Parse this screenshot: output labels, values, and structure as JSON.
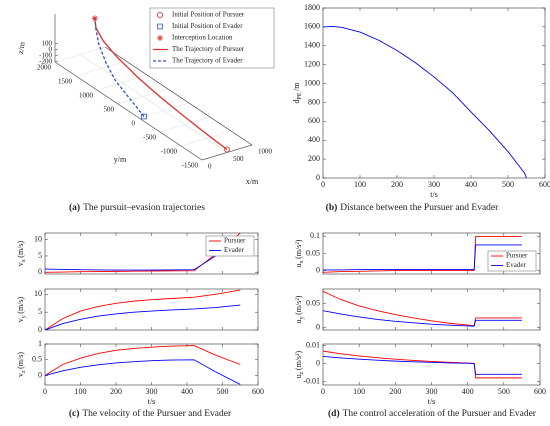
{
  "chart_data": [
    {
      "type": "line3d",
      "xlabel": "x/m",
      "ylabel": "y/m",
      "zlabel": "z/m",
      "xlim": [
        0,
        1000
      ],
      "ylim": [
        -1500,
        2000
      ],
      "zlim": [
        -200,
        600
      ],
      "xticks": [
        0,
        500,
        1000
      ],
      "yticks": [
        2000,
        1500,
        1000,
        500,
        0,
        -500,
        -1000,
        -1500
      ],
      "zticks": [
        100,
        0,
        -100,
        -200
      ],
      "markers": [
        {
          "name": "Initial Position of Pursuer",
          "marker": "circle",
          "color": "#e03030",
          "x": 500,
          "y": -1500,
          "z": -150
        },
        {
          "name": "Initial Position of Evader",
          "marker": "square",
          "color": "#3050c0",
          "x": 100,
          "y": 0,
          "z": -200
        },
        {
          "name": "Interception Location",
          "marker": "star",
          "color": "#e03030",
          "x": 460,
          "y": 1600,
          "z": 600
        }
      ],
      "series": [
        {
          "name": "The Trajectory of Pursuer",
          "color": "#e03030",
          "dash": false,
          "x": [
            500,
            480,
            460,
            440,
            420,
            400,
            380,
            400,
            460
          ],
          "y": [
            -1500,
            -1000,
            -500,
            0,
            500,
            1000,
            1300,
            1500,
            1600
          ],
          "z": [
            -150,
            -100,
            -40,
            30,
            120,
            250,
            380,
            500,
            600
          ]
        },
        {
          "name": "The Trajectory of Evader",
          "color": "#3050c0",
          "dash": true,
          "x": [
            100,
            150,
            200,
            260,
            330,
            400,
            460
          ],
          "y": [
            0,
            400,
            800,
            1100,
            1350,
            1500,
            1600
          ],
          "z": [
            -200,
            -100,
            0,
            150,
            320,
            470,
            600
          ]
        }
      ]
    },
    {
      "type": "line",
      "xlabel": "t/s",
      "ylabel": "d",
      "ylabel_sub": "PE",
      "ylabel_unit": "/m",
      "x": [
        0,
        25,
        50,
        100,
        150,
        200,
        250,
        300,
        350,
        400,
        450,
        500,
        545,
        550
      ],
      "xlim": [
        0,
        600
      ],
      "ylim": [
        0,
        1800
      ],
      "xticks": [
        0,
        100,
        200,
        300,
        400,
        500,
        600
      ],
      "yticks": [
        0,
        200,
        400,
        600,
        800,
        1000,
        1200,
        1400,
        1600,
        1800
      ],
      "series": [
        {
          "name": null,
          "color": "#0000ff",
          "values": [
            1600,
            1605,
            1595,
            1545,
            1460,
            1350,
            1220,
            1070,
            905,
            700,
            500,
            280,
            50,
            0
          ]
        }
      ]
    },
    {
      "type": "line",
      "ylabel": "v",
      "ylabel_sub": "x",
      "ylabel_unit": "(m/s)",
      "xtick_labels": false,
      "legend": "upper right",
      "x": [
        0,
        50,
        100,
        150,
        200,
        250,
        300,
        350,
        420,
        480,
        550
      ],
      "xlim": [
        0,
        600
      ],
      "ylim": [
        -0.5,
        12
      ],
      "xticks": [
        0,
        100,
        200,
        300,
        400,
        500,
        600
      ],
      "yticks": [
        0,
        5,
        10
      ],
      "series": [
        {
          "name": "Pursuer",
          "color": "#ff0000",
          "values": [
            0,
            0.1,
            0.2,
            0.25,
            0.3,
            0.35,
            0.4,
            0.45,
            0.5,
            5.5,
            12
          ]
        },
        {
          "name": "Evader",
          "color": "#0000ff",
          "values": [
            1,
            0.9,
            0.8,
            0.75,
            0.7,
            0.7,
            0.7,
            0.75,
            0.8,
            5,
            10.5
          ]
        }
      ]
    },
    {
      "type": "line",
      "ylabel": "v",
      "ylabel_sub": "y",
      "ylabel_unit": "(m/s)",
      "xtick_labels": false,
      "x": [
        0,
        50,
        100,
        150,
        200,
        250,
        300,
        350,
        420,
        480,
        550
      ],
      "xlim": [
        0,
        600
      ],
      "ylim": [
        0,
        11.5
      ],
      "xticks": [
        0,
        100,
        200,
        300,
        400,
        500,
        600
      ],
      "yticks": [
        0,
        5,
        10
      ],
      "series": [
        {
          "name": "Pursuer",
          "color": "#ff0000",
          "values": [
            0,
            3.2,
            5.3,
            6.6,
            7.5,
            8.1,
            8.5,
            8.8,
            9.2,
            10,
            11.2
          ]
        },
        {
          "name": "Evader",
          "color": "#0000ff",
          "values": [
            0,
            1.8,
            3,
            3.9,
            4.5,
            5,
            5.3,
            5.6,
            5.9,
            6.3,
            7
          ]
        }
      ]
    },
    {
      "type": "line",
      "xlabel": "t/s",
      "ylabel": "v",
      "ylabel_sub": "z",
      "ylabel_unit": "(m/s)",
      "x": [
        0,
        50,
        100,
        150,
        200,
        250,
        300,
        350,
        420,
        480,
        550
      ],
      "xlim": [
        0,
        600
      ],
      "ylim": [
        -0.3,
        1
      ],
      "xticks": [
        0,
        100,
        200,
        300,
        400,
        500,
        600
      ],
      "yticks": [
        0,
        0.5,
        1
      ],
      "series": [
        {
          "name": "Pursuer",
          "color": "#ff0000",
          "values": [
            0,
            0.35,
            0.55,
            0.7,
            0.8,
            0.86,
            0.9,
            0.93,
            0.95,
            0.65,
            0.35
          ]
        },
        {
          "name": "Evader",
          "color": "#0000ff",
          "values": [
            0,
            0.15,
            0.26,
            0.34,
            0.4,
            0.44,
            0.47,
            0.49,
            0.5,
            0.12,
            -0.28
          ]
        }
      ]
    },
    {
      "type": "line",
      "ylabel": "u",
      "ylabel_sub": "x",
      "ylabel_unit": "(m/s²)",
      "xtick_labels": false,
      "legend": "lower right",
      "x": [
        0,
        50,
        100,
        150,
        200,
        250,
        300,
        350,
        418,
        422,
        480,
        550
      ],
      "xlim": [
        0,
        600
      ],
      "ylim": [
        -0.01,
        0.11
      ],
      "xticks": [
        0,
        100,
        200,
        300,
        400,
        500,
        600
      ],
      "yticks": [
        0,
        0.05,
        0.1
      ],
      "series": [
        {
          "name": "Pursuer",
          "color": "#ff0000",
          "values": [
            -0.005,
            -0.003,
            -0.002,
            -0.001,
            0,
            0,
            0,
            0,
            0,
            0.1,
            0.1,
            0.1
          ]
        },
        {
          "name": "Evader",
          "color": "#0000ff",
          "values": [
            0.002,
            0.002,
            0.003,
            0.003,
            0.003,
            0.003,
            0.003,
            0.003,
            0.003,
            0.075,
            0.075,
            0.075
          ]
        }
      ]
    },
    {
      "type": "line",
      "ylabel": "u",
      "ylabel_sub": "y",
      "ylabel_unit": "(m/s²)",
      "xtick_labels": false,
      "x": [
        0,
        50,
        100,
        150,
        200,
        250,
        300,
        350,
        418,
        422,
        480,
        550
      ],
      "xlim": [
        0,
        600
      ],
      "ylim": [
        -0.005,
        0.08
      ],
      "xticks": [
        0,
        100,
        200,
        300,
        400,
        500,
        600
      ],
      "yticks": [
        0,
        0.05
      ],
      "series": [
        {
          "name": "Pursuer",
          "color": "#ff0000",
          "values": [
            0.075,
            0.058,
            0.045,
            0.035,
            0.027,
            0.02,
            0.014,
            0.009,
            0.004,
            0.02,
            0.02,
            0.02
          ]
        },
        {
          "name": "Evader",
          "color": "#0000ff",
          "values": [
            0.035,
            0.028,
            0.022,
            0.017,
            0.013,
            0.01,
            0.007,
            0.005,
            0.003,
            0.015,
            0.015,
            0.015
          ]
        }
      ]
    },
    {
      "type": "line",
      "xlabel": "t/s",
      "ylabel": "u",
      "ylabel_sub": "z",
      "ylabel_unit": "(m/s²)",
      "x": [
        0,
        50,
        100,
        150,
        200,
        250,
        300,
        350,
        418,
        422,
        480,
        550
      ],
      "xlim": [
        0,
        600
      ],
      "ylim": [
        -0.012,
        0.011
      ],
      "xticks": [
        0,
        100,
        200,
        300,
        400,
        500,
        600
      ],
      "yticks": [
        -0.01,
        0,
        0.01
      ],
      "series": [
        {
          "name": "Pursuer",
          "color": "#ff0000",
          "values": [
            0.007,
            0.0055,
            0.0043,
            0.0033,
            0.0025,
            0.0018,
            0.0012,
            0.0007,
            0.0002,
            -0.008,
            -0.008,
            -0.008
          ]
        },
        {
          "name": "Evader",
          "color": "#0000ff",
          "values": [
            0.004,
            0.0032,
            0.0025,
            0.0019,
            0.0014,
            0.001,
            0.0007,
            0.0004,
            0.0001,
            -0.006,
            -0.006,
            -0.006
          ]
        }
      ]
    }
  ],
  "captions": [
    {
      "label": "(a)",
      "text": "The pursuit–evasion trajectories"
    },
    {
      "label": "(b)",
      "text": "Distance between the Pursuer and Evader"
    },
    {
      "label": "(c)",
      "text": "The velocity of the Pursuer and Evader"
    },
    {
      "label": "(d)",
      "text": "The control acceleration of the Pursuer and Evader"
    }
  ]
}
